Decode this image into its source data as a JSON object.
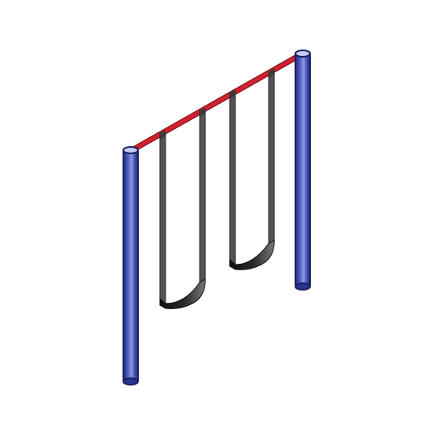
{
  "scene": {
    "subject": "swing-set",
    "swing_count": 2,
    "post_count": 2
  },
  "colors": {
    "background": "#ffffff",
    "post_fill": "#3f4db0",
    "post_highlight": "#8f98e0",
    "post_shadow": "#1f2a80",
    "post_outline": "#1a1f5e",
    "post_cap": "#c7ccf5",
    "crossbar": "#d02030",
    "chain": "#545454",
    "chain_outline": "#2a2a2a",
    "seat_dark": "#111111",
    "seat_light": "#6a6a6a"
  }
}
